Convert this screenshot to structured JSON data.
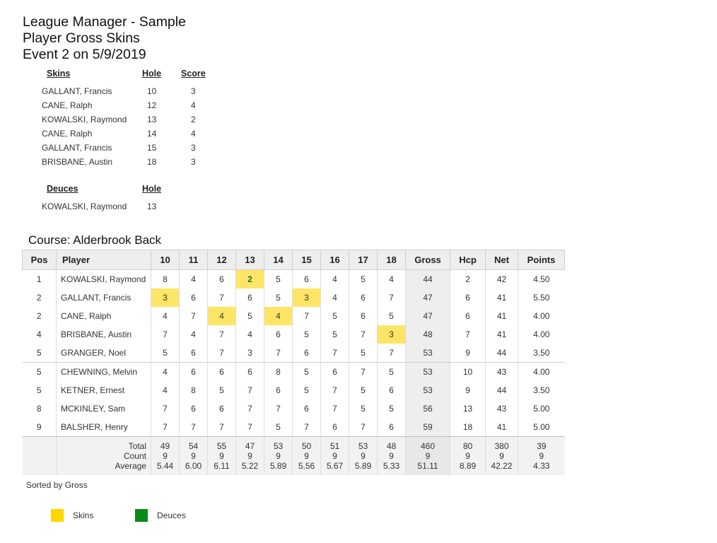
{
  "header": {
    "line1": "League Manager - Sample",
    "line2": "Player Gross Skins",
    "line3": "Event 2 on 5/9/2019"
  },
  "skins": {
    "headers": [
      "Skins",
      "Hole",
      "Score"
    ],
    "rows": [
      {
        "name": "GALLANT, Francis",
        "hole": "10",
        "score": "3"
      },
      {
        "name": "CANE, Ralph",
        "hole": "12",
        "score": "4"
      },
      {
        "name": "KOWALSKI, Raymond",
        "hole": "13",
        "score": "2"
      },
      {
        "name": "CANE, Ralph",
        "hole": "14",
        "score": "4"
      },
      {
        "name": "GALLANT, Francis",
        "hole": "15",
        "score": "3"
      },
      {
        "name": "BRISBANE, Austin",
        "hole": "18",
        "score": "3"
      }
    ]
  },
  "deuces": {
    "headers": [
      "Deuces",
      "Hole"
    ],
    "rows": [
      {
        "name": "KOWALSKI, Raymond",
        "hole": "13"
      }
    ]
  },
  "course": "Course: Alderbrook Back",
  "table": {
    "columns": [
      "Pos",
      "Player",
      "10",
      "11",
      "12",
      "13",
      "14",
      "15",
      "16",
      "17",
      "18",
      "Gross",
      "Hcp",
      "Net",
      "Points"
    ],
    "rows": [
      {
        "pos": "1",
        "player": "KOWALSKI, Raymond",
        "holes": [
          "8",
          "4",
          "6",
          "2",
          "5",
          "6",
          "4",
          "5",
          "4"
        ],
        "gross": "44",
        "hcp": "2",
        "net": "42",
        "points": "4.50"
      },
      {
        "pos": "2",
        "player": "GALLANT, Francis",
        "holes": [
          "3",
          "6",
          "7",
          "6",
          "5",
          "3",
          "4",
          "6",
          "7"
        ],
        "gross": "47",
        "hcp": "6",
        "net": "41",
        "points": "5.50"
      },
      {
        "pos": "2",
        "player": "CANE, Ralph",
        "holes": [
          "4",
          "7",
          "4",
          "5",
          "4",
          "7",
          "5",
          "6",
          "5"
        ],
        "gross": "47",
        "hcp": "6",
        "net": "41",
        "points": "4.00"
      },
      {
        "pos": "4",
        "player": "BRISBANE, Austin",
        "holes": [
          "7",
          "4",
          "7",
          "4",
          "6",
          "5",
          "5",
          "7",
          "3"
        ],
        "gross": "48",
        "hcp": "7",
        "net": "41",
        "points": "4.00"
      },
      {
        "pos": "5",
        "player": "GRANGER, Noel",
        "holes": [
          "5",
          "6",
          "7",
          "3",
          "7",
          "6",
          "7",
          "5",
          "7"
        ],
        "gross": "53",
        "hcp": "9",
        "net": "44",
        "points": "3.50"
      },
      {
        "pos": "5",
        "player": "CHEWNING, Melvin",
        "holes": [
          "4",
          "6",
          "6",
          "6",
          "8",
          "5",
          "6",
          "7",
          "5"
        ],
        "gross": "53",
        "hcp": "10",
        "net": "43",
        "points": "4.00"
      },
      {
        "pos": "5",
        "player": "KETNER, Ernest",
        "holes": [
          "4",
          "8",
          "5",
          "7",
          "6",
          "5",
          "7",
          "5",
          "6"
        ],
        "gross": "53",
        "hcp": "9",
        "net": "44",
        "points": "3.50"
      },
      {
        "pos": "8",
        "player": "MCKINLEY, Sam",
        "holes": [
          "7",
          "6",
          "6",
          "7",
          "7",
          "6",
          "7",
          "5",
          "5"
        ],
        "gross": "56",
        "hcp": "13",
        "net": "43",
        "points": "5.00"
      },
      {
        "pos": "9",
        "player": "BALSHER, Henry",
        "holes": [
          "7",
          "7",
          "7",
          "7",
          "5",
          "7",
          "6",
          "7",
          "6"
        ],
        "gross": "59",
        "hcp": "18",
        "net": "41",
        "points": "5.00"
      }
    ],
    "totals": {
      "labels": [
        "Total",
        "Count",
        "Average"
      ],
      "values": [
        [
          "49",
          "9",
          "5.44"
        ],
        [
          "54",
          "9",
          "6.00"
        ],
        [
          "55",
          "9",
          "6.11"
        ],
        [
          "47",
          "9",
          "5.22"
        ],
        [
          "53",
          "9",
          "5.89"
        ],
        [
          "50",
          "9",
          "5.56"
        ],
        [
          "51",
          "9",
          "5.67"
        ],
        [
          "53",
          "9",
          "5.89"
        ],
        [
          "48",
          "9",
          "5.33"
        ],
        [
          "460",
          "9",
          "51.11"
        ],
        [
          "80",
          "9",
          "8.89"
        ],
        [
          "380",
          "9",
          "42.22"
        ],
        [
          "39",
          "9",
          "4.33"
        ]
      ]
    }
  },
  "footer": {
    "sorted": "Sorted by Gross",
    "legend_skins": "Skins",
    "legend_deuces": "Deuces",
    "skins_color": "#ffd700",
    "deuces_color": "#0a8a17"
  }
}
